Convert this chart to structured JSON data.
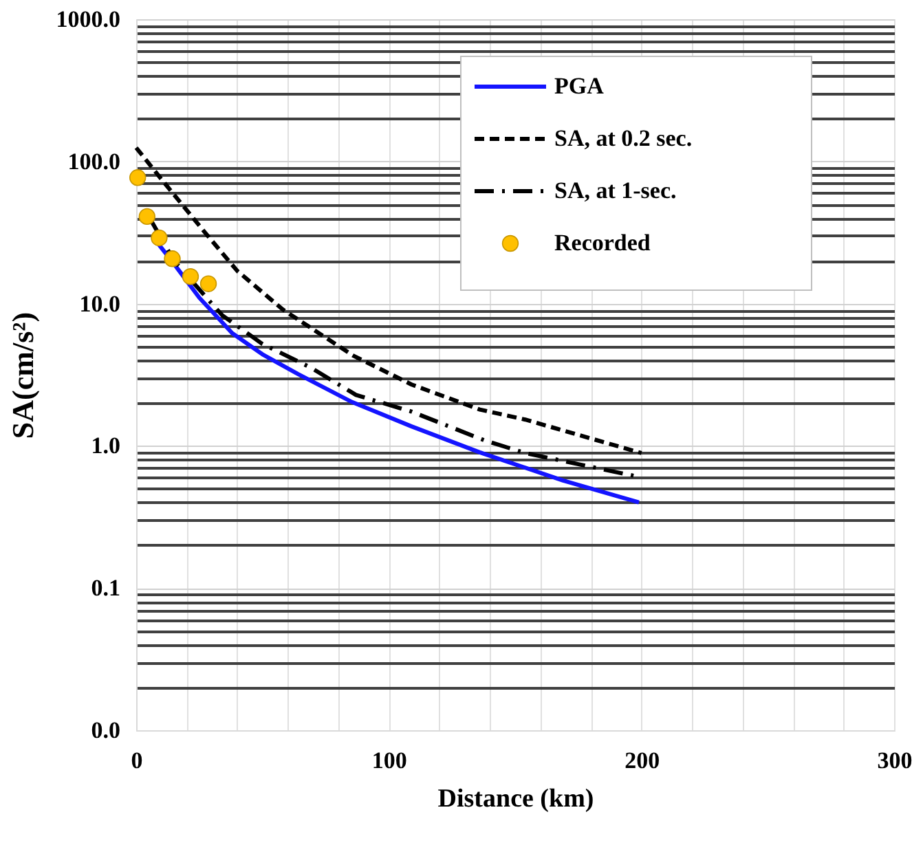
{
  "chart_data": {
    "type": "line",
    "xlabel": "Distance (km)",
    "ylabel": "SA(cm/s²)",
    "log": "y",
    "grid": true,
    "legend": "top right",
    "xlim": [
      0,
      300
    ],
    "xticks": [
      0,
      {
        "value": 20,
        "label": null
      },
      {
        "value": 40,
        "label": null
      },
      {
        "value": 60,
        "label": null
      },
      {
        "value": 80,
        "label": null
      },
      100,
      {
        "value": 120,
        "label": null
      },
      {
        "value": 140,
        "label": null
      },
      {
        "value": 160,
        "label": null
      },
      {
        "value": 180,
        "label": null
      },
      200,
      {
        "value": 220,
        "label": null
      },
      {
        "value": 240,
        "label": null
      },
      {
        "value": 260,
        "label": null
      },
      {
        "value": 280,
        "label": null
      },
      300
    ],
    "ylim": [
      0.01,
      1000
    ],
    "yticks": [
      {
        "value": 0.01,
        "label": "0.0"
      },
      {
        "value": 0.02,
        "label": null
      },
      {
        "value": 0.03,
        "label": null
      },
      {
        "value": 0.04,
        "label": null
      },
      {
        "value": 0.05,
        "label": null
      },
      {
        "value": 0.06,
        "label": null
      },
      {
        "value": 0.07,
        "label": null
      },
      {
        "value": 0.08,
        "label": null
      },
      {
        "value": 0.09,
        "label": null
      },
      0.1,
      {
        "value": 0.2,
        "label": null
      },
      {
        "value": 0.3,
        "label": null
      },
      {
        "value": 0.4,
        "label": null
      },
      {
        "value": 0.5,
        "label": null
      },
      {
        "value": 0.6,
        "label": null
      },
      {
        "value": 0.7,
        "label": null
      },
      {
        "value": 0.8,
        "label": null
      },
      {
        "value": 0.9,
        "label": null
      },
      {
        "value": 1,
        "label": "1.0"
      },
      {
        "value": 2,
        "label": null
      },
      {
        "value": 3,
        "label": null
      },
      {
        "value": 4,
        "label": null
      },
      {
        "value": 5,
        "label": null
      },
      {
        "value": 6,
        "label": null
      },
      {
        "value": 7,
        "label": null
      },
      {
        "value": 8,
        "label": null
      },
      {
        "value": 9,
        "label": null
      },
      {
        "value": 10,
        "label": "10.0"
      },
      {
        "value": 20,
        "label": null
      },
      {
        "value": 30,
        "label": null
      },
      {
        "value": 40,
        "label": null
      },
      {
        "value": 50,
        "label": null
      },
      {
        "value": 60,
        "label": null
      },
      {
        "value": 70,
        "label": null
      },
      {
        "value": 80,
        "label": null
      },
      {
        "value": 90,
        "label": null
      },
      {
        "value": 100,
        "label": "100.0"
      },
      {
        "value": 200,
        "label": null
      },
      {
        "value": 300,
        "label": null
      },
      {
        "value": 400,
        "label": null
      },
      {
        "value": 500,
        "label": null
      },
      {
        "value": 600,
        "label": null
      },
      {
        "value": 700,
        "label": null
      },
      {
        "value": 800,
        "label": null
      },
      {
        "value": 900,
        "label": null
      },
      {
        "value": 1000,
        "label": "1000.0"
      }
    ],
    "series": [
      {
        "name": "PGA",
        "color": "#1414ff",
        "line_style": "solid",
        "marker": "none",
        "x": [
          9,
          15,
          25,
          38,
          50,
          64,
          85,
          109,
          136,
          169,
          199
        ],
        "values": [
          26,
          19,
          11,
          6.2,
          4.4,
          3.2,
          2.05,
          1.37,
          0.9,
          0.57,
          0.4
        ]
      },
      {
        "name": "SA, at 0.2 sec.",
        "color": "#000000",
        "line_style": "dashed",
        "marker": "none",
        "x": [
          0,
          10,
          27,
          40,
          58,
          86,
          109,
          136,
          154,
          200
        ],
        "values": [
          125,
          75,
          32,
          17,
          9.1,
          4.3,
          2.7,
          1.8,
          1.53,
          0.89
        ]
      },
      {
        "name": "SA, at 1-sec.",
        "color": "#000000",
        "line_style": "dashdot",
        "marker": "none",
        "x": [
          5,
          15,
          34,
          50,
          69,
          87,
          109,
          138,
          154,
          200
        ],
        "values": [
          41,
          20,
          8.3,
          5.2,
          3.56,
          2.28,
          1.74,
          1.09,
          0.89,
          0.6
        ]
      },
      {
        "name": "Recorded",
        "type": "scatter",
        "color": "#ffc000",
        "marker": "circle",
        "x": [
          0.6,
          4.3,
          9.1,
          14.3,
          21.5,
          28.6
        ],
        "values": [
          77,
          41,
          29,
          20.7,
          15.5,
          13.8
        ]
      }
    ]
  }
}
